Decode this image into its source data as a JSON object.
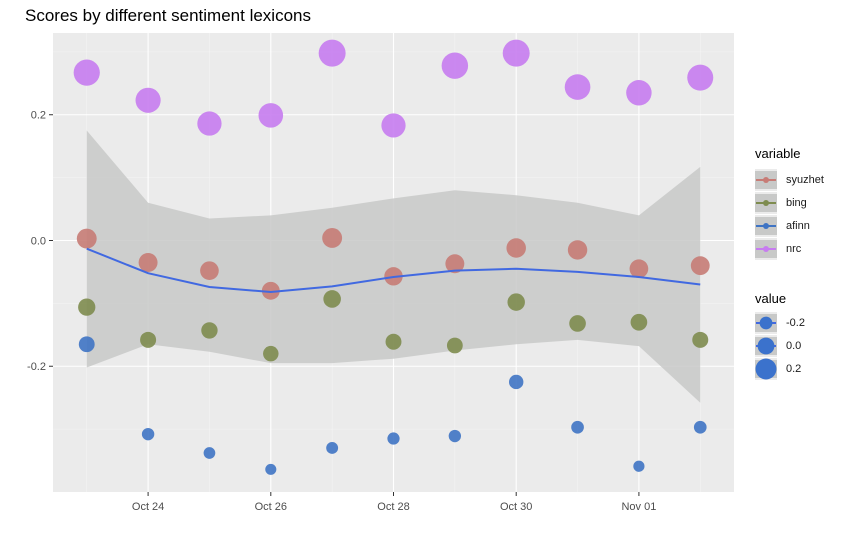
{
  "chart_data": {
    "type": "scatter",
    "title": "Scores by different sentiment lexicons",
    "xlabel": "",
    "ylabel": "",
    "x": [
      "2017-10-23",
      "2017-10-24",
      "2017-10-25",
      "2017-10-26",
      "2017-10-27",
      "2017-10-28",
      "2017-10-29",
      "2017-10-30",
      "2017-10-31",
      "2017-11-01",
      "2017-11-02"
    ],
    "x_tick_labels": [
      "Oct 24",
      "Oct 26",
      "Oct 28",
      "Oct 30",
      "Nov 01"
    ],
    "y_ticks": [
      -0.2,
      0.0,
      0.2
    ],
    "y_tick_labels": [
      "-0.2",
      "0.0",
      "0.2"
    ],
    "ylim": [
      -0.4,
      0.33
    ],
    "grid": true,
    "series": [
      {
        "name": "syuzhet",
        "color": "#C77C76",
        "values": [
          0.003,
          -0.035,
          -0.048,
          -0.08,
          0.004,
          -0.057,
          -0.037,
          -0.012,
          -0.015,
          -0.045,
          -0.04
        ]
      },
      {
        "name": "bing",
        "color": "#7E8C4F",
        "values": [
          -0.106,
          -0.158,
          -0.143,
          -0.18,
          -0.093,
          -0.161,
          -0.167,
          -0.098,
          -0.132,
          -0.13,
          -0.158
        ]
      },
      {
        "name": "afinn",
        "color": "#3F74C4",
        "values": [
          -0.165,
          -0.308,
          -0.338,
          -0.364,
          -0.33,
          -0.315,
          -0.311,
          -0.225,
          -0.297,
          -0.359,
          -0.297
        ]
      },
      {
        "name": "nrc",
        "color": "#C77CF0",
        "values": [
          0.267,
          0.223,
          0.186,
          0.199,
          0.298,
          0.183,
          0.278,
          0.298,
          0.244,
          0.235,
          0.259
        ]
      }
    ],
    "size_by": "value",
    "smooth": {
      "series": "afinn",
      "color": "#4169E1",
      "fit": [
        -0.013,
        -0.052,
        -0.074,
        -0.082,
        -0.073,
        -0.058,
        -0.048,
        -0.045,
        -0.05,
        -0.058,
        -0.07
      ],
      "band_upper": [
        0.175,
        0.06,
        0.035,
        0.04,
        0.052,
        0.067,
        0.08,
        0.072,
        0.06,
        0.04,
        0.117
      ],
      "band_lower": [
        -0.202,
        -0.165,
        -0.177,
        -0.195,
        -0.195,
        -0.188,
        -0.175,
        -0.165,
        -0.158,
        -0.168,
        -0.258
      ]
    },
    "legend": {
      "placement": "right",
      "variable_title": "variable",
      "variable_entries": [
        "syuzhet",
        "bing",
        "afinn",
        "nrc"
      ],
      "value_title": "value",
      "value_entries": [
        "-0.2",
        "0.0",
        "0.2"
      ],
      "value_levels": [
        -0.2,
        0.0,
        0.2
      ]
    }
  },
  "colors": {
    "panel_background": "#EBEBEB",
    "grid_major": "#FFFFFF",
    "band_fill": "#C8C9C8",
    "legend_key_background": "#EBEBEB"
  }
}
